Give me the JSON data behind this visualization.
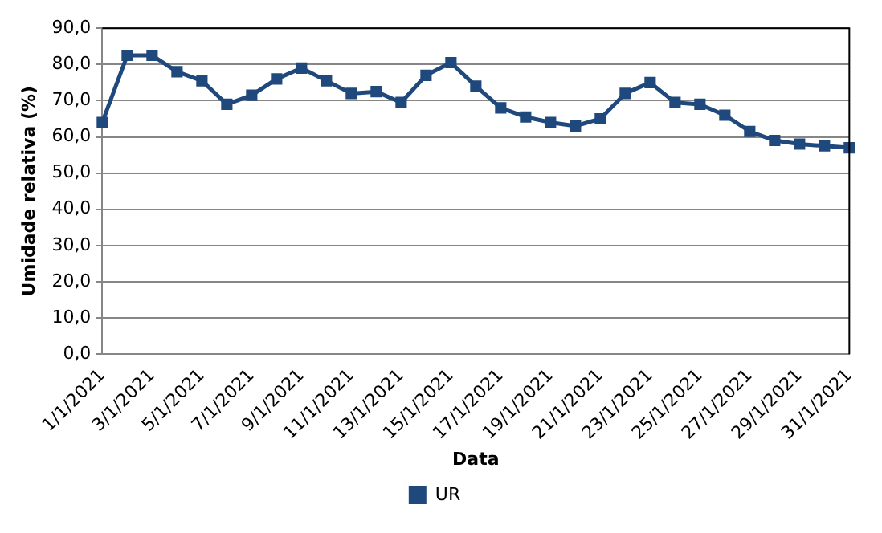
{
  "chart_data": {
    "type": "line",
    "xlabel": "Data",
    "ylabel": "Umidade relativa (%)",
    "categories": [
      "1/1/2021",
      null,
      "3/1/2021",
      null,
      "5/1/2021",
      null,
      "7/1/2021",
      null,
      "9/1/2021",
      null,
      "11/1/2021",
      null,
      "13/1/2021",
      null,
      "15/1/2021",
      null,
      "17/1/2021",
      null,
      "19/1/2021",
      null,
      "21/1/2021",
      null,
      "23/1/2021",
      null,
      "25/1/2021",
      null,
      "27/1/2021",
      null,
      "29/1/2021",
      null,
      "31/1/2021"
    ],
    "series": [
      {
        "name": "UR",
        "color": "#1f497d",
        "values": [
          64,
          82.5,
          82.5,
          78,
          75.5,
          69,
          71.5,
          76,
          79,
          75.5,
          72,
          72.5,
          69.5,
          77,
          80.5,
          74,
          68,
          65.5,
          64,
          63,
          65,
          72,
          75,
          69.5,
          69,
          66,
          61.5,
          59,
          58,
          57.5,
          57
        ]
      }
    ],
    "ylim": [
      0,
      90
    ],
    "yticks": [
      {
        "value": 0,
        "label": "0,0"
      },
      {
        "value": 10,
        "label": "10,0"
      },
      {
        "value": 20,
        "label": "20,0"
      },
      {
        "value": 30,
        "label": "30,0"
      },
      {
        "value": 40,
        "label": "40,0"
      },
      {
        "value": 50,
        "label": "50,0"
      },
      {
        "value": 60,
        "label": "60,0"
      },
      {
        "value": 70,
        "label": "70,0"
      },
      {
        "value": 80,
        "label": "80,0"
      },
      {
        "value": 90,
        "label": "90,0"
      }
    ],
    "grid": "y",
    "legend": "bottom",
    "marker": "square",
    "line_style": "solid"
  }
}
